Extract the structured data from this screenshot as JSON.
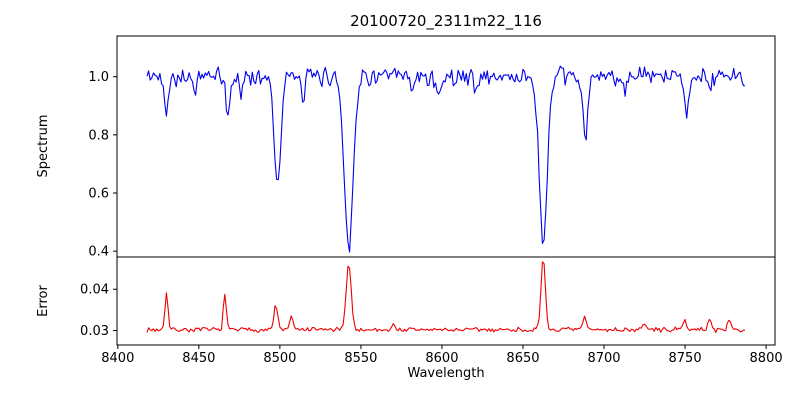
{
  "figure": {
    "title": "20100720_2311m22_116",
    "xlabel": "Wavelength",
    "background": "#ffffff"
  },
  "axes": {
    "xticks": [
      {
        "value": 8400,
        "label": "8400"
      },
      {
        "value": 8450,
        "label": "8450"
      },
      {
        "value": 8500,
        "label": "8500"
      },
      {
        "value": 8550,
        "label": "8550"
      },
      {
        "value": 8600,
        "label": "8600"
      },
      {
        "value": 8650,
        "label": "8650"
      },
      {
        "value": 8700,
        "label": "8700"
      },
      {
        "value": 8750,
        "label": "8750"
      },
      {
        "value": 8800,
        "label": "8800"
      }
    ]
  },
  "chart_data": [
    {
      "type": "line",
      "panel": "top",
      "ylabel": "Spectrum",
      "color": "#0000ee",
      "xlim": [
        8399.5,
        8805.5
      ],
      "ylim": [
        0.38,
        1.14
      ],
      "yticks": [
        {
          "value": 0.4,
          "label": "0.4"
        },
        {
          "value": 0.6,
          "label": "0.6"
        },
        {
          "value": 0.8,
          "label": "0.8"
        },
        {
          "value": 1.0,
          "label": "1.0"
        }
      ],
      "x_start": 8418,
      "x_end": 8787,
      "x_step": 1,
      "baseline": 1.0,
      "noise_amplitude": 0.038,
      "noise_seed": 42,
      "absorption_lines": [
        {
          "center": 8430.0,
          "depth": 0.11,
          "sigma": 1.2
        },
        {
          "center": 8447.0,
          "depth": 0.05,
          "sigma": 1.0
        },
        {
          "center": 8468.0,
          "depth": 0.13,
          "sigma": 1.4
        },
        {
          "center": 8476.0,
          "depth": 0.06,
          "sigma": 1.0
        },
        {
          "center": 8498.5,
          "depth": 0.36,
          "sigma": 2.0
        },
        {
          "center": 8514.0,
          "depth": 0.08,
          "sigma": 1.1
        },
        {
          "center": 8542.5,
          "depth": 0.58,
          "sigma": 2.7
        },
        {
          "center": 8582.0,
          "depth": 0.06,
          "sigma": 1.1
        },
        {
          "center": 8598.0,
          "depth": 0.08,
          "sigma": 1.2
        },
        {
          "center": 8621.0,
          "depth": 0.05,
          "sigma": 1.0
        },
        {
          "center": 8662.5,
          "depth": 0.57,
          "sigma": 2.5
        },
        {
          "center": 8688.5,
          "depth": 0.22,
          "sigma": 1.5
        },
        {
          "center": 8713.0,
          "depth": 0.05,
          "sigma": 1.0
        },
        {
          "center": 8751.0,
          "depth": 0.11,
          "sigma": 1.3
        },
        {
          "center": 8765.0,
          "depth": 0.05,
          "sigma": 1.0
        }
      ]
    },
    {
      "type": "line",
      "panel": "bottom",
      "ylabel": "Error",
      "color": "#ee0000",
      "ylim": [
        0.0265,
        0.0478
      ],
      "yticks": [
        {
          "value": 0.03,
          "label": "0.03"
        },
        {
          "value": 0.04,
          "label": "0.04"
        }
      ],
      "x_start": 8418,
      "x_end": 8787,
      "x_step": 1,
      "baseline": 0.0302,
      "noise_amplitude": 0.0007,
      "noise_seed": 7,
      "peaks": [
        {
          "center": 8430.0,
          "height": 0.0093,
          "sigma": 0.9
        },
        {
          "center": 8466.0,
          "height": 0.0088,
          "sigma": 0.9
        },
        {
          "center": 8497.5,
          "height": 0.0062,
          "sigma": 1.1
        },
        {
          "center": 8507.0,
          "height": 0.0032,
          "sigma": 1.0
        },
        {
          "center": 8542.5,
          "height": 0.0163,
          "sigma": 1.5
        },
        {
          "center": 8570.0,
          "height": 0.0012,
          "sigma": 1.0
        },
        {
          "center": 8662.5,
          "height": 0.0172,
          "sigma": 1.3
        },
        {
          "center": 8688.0,
          "height": 0.0032,
          "sigma": 1.0
        },
        {
          "center": 8725.0,
          "height": 0.0018,
          "sigma": 0.9
        },
        {
          "center": 8750.0,
          "height": 0.0028,
          "sigma": 0.9
        },
        {
          "center": 8765.0,
          "height": 0.003,
          "sigma": 0.9
        },
        {
          "center": 8777.0,
          "height": 0.0028,
          "sigma": 0.9
        }
      ]
    }
  ]
}
